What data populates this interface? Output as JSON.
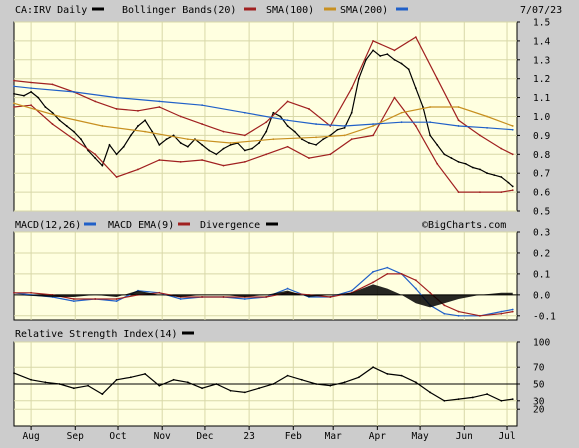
{
  "header": {
    "symbol_label": "CA:IRV Daily",
    "bollinger_label": "Bollinger Bands(20)",
    "sma100_label": "SMA(100)",
    "sma200_label": "SMA(200)",
    "date_label": "7/07/23"
  },
  "macd_header": {
    "macd_label": "MACD(12,26)",
    "ema_label": "MACD EMA(9)",
    "divergence_label": "Divergence",
    "watermark": "©BigCharts.com"
  },
  "rsi_header": {
    "rsi_label": "Relative Strength Index(14)"
  },
  "colors": {
    "background": "#cccccc",
    "panel": "#ffffe0",
    "grid": "#d8d8a8",
    "price": "#000000",
    "bollinger": "#a02020",
    "sma100": "#c89020",
    "sma200": "#2060c8",
    "macd": "#2060c8",
    "macd_ema": "#a02020",
    "divergence": "#000000",
    "rsi": "#000000"
  },
  "chart_data": [
    {
      "type": "line",
      "panel": "price",
      "y_ticks": [
        "0.5",
        "0.6",
        "0.7",
        "0.8",
        "0.9",
        "1.0",
        "1.1",
        "1.2",
        "1.3",
        "1.4",
        "1.5"
      ],
      "ylim": [
        0.5,
        1.5
      ],
      "x_ticks": [
        "Aug",
        "Sep",
        "Oct",
        "Nov",
        "Dec",
        "23",
        "Feb",
        "Mar",
        "Apr",
        "May",
        "Jun",
        "Jul"
      ],
      "x_tick_days": [
        0,
        31,
        61,
        92,
        122,
        153,
        184,
        212,
        243,
        273,
        304,
        334
      ],
      "x_range_days": [
        -12,
        341
      ],
      "series": [
        {
          "name": "Price",
          "x": [
            -12,
            -5,
            0,
            5,
            10,
            15,
            20,
            25,
            30,
            35,
            40,
            45,
            50,
            55,
            60,
            65,
            70,
            75,
            80,
            85,
            90,
            95,
            100,
            105,
            110,
            115,
            120,
            125,
            130,
            135,
            140,
            145,
            150,
            155,
            160,
            165,
            170,
            175,
            180,
            185,
            190,
            195,
            200,
            205,
            210,
            215,
            220,
            225,
            230,
            235,
            240,
            245,
            250,
            255,
            260,
            265,
            270,
            275,
            280,
            285,
            290,
            295,
            300,
            305,
            310,
            315,
            320,
            325,
            330,
            335,
            338
          ],
          "y": [
            1.12,
            1.11,
            1.13,
            1.1,
            1.05,
            1.02,
            0.98,
            0.95,
            0.92,
            0.88,
            0.82,
            0.78,
            0.74,
            0.85,
            0.8,
            0.84,
            0.9,
            0.95,
            0.98,
            0.92,
            0.85,
            0.88,
            0.9,
            0.86,
            0.84,
            0.88,
            0.85,
            0.82,
            0.8,
            0.83,
            0.85,
            0.86,
            0.82,
            0.83,
            0.86,
            0.92,
            1.02,
            1.0,
            0.95,
            0.92,
            0.88,
            0.86,
            0.85,
            0.88,
            0.9,
            0.93,
            0.94,
            1.02,
            1.2,
            1.3,
            1.35,
            1.32,
            1.33,
            1.3,
            1.28,
            1.25,
            1.15,
            1.05,
            0.9,
            0.85,
            0.8,
            0.78,
            0.76,
            0.75,
            0.73,
            0.72,
            0.7,
            0.69,
            0.68,
            0.65,
            0.63
          ]
        },
        {
          "name": "Bollinger Bands(20) Upper",
          "x": [
            -12,
            0,
            15,
            30,
            45,
            60,
            75,
            90,
            105,
            120,
            135,
            150,
            165,
            180,
            195,
            210,
            225,
            240,
            255,
            270,
            285,
            300,
            315,
            330,
            338
          ],
          "y": [
            1.19,
            1.18,
            1.17,
            1.13,
            1.08,
            1.04,
            1.03,
            1.05,
            1.0,
            0.96,
            0.92,
            0.9,
            0.97,
            1.08,
            1.04,
            0.95,
            1.15,
            1.4,
            1.35,
            1.42,
            1.2,
            0.98,
            0.9,
            0.83,
            0.8
          ]
        },
        {
          "name": "Bollinger Bands(20) Lower",
          "x": [
            -12,
            0,
            15,
            30,
            45,
            60,
            75,
            90,
            105,
            120,
            135,
            150,
            165,
            180,
            195,
            210,
            225,
            240,
            255,
            270,
            285,
            300,
            315,
            330,
            338
          ],
          "y": [
            1.05,
            1.06,
            0.96,
            0.88,
            0.8,
            0.68,
            0.72,
            0.77,
            0.76,
            0.77,
            0.74,
            0.76,
            0.8,
            0.84,
            0.78,
            0.8,
            0.88,
            0.9,
            1.1,
            0.95,
            0.75,
            0.6,
            0.6,
            0.6,
            0.61
          ]
        },
        {
          "name": "SMA(100)",
          "x": [
            -12,
            20,
            50,
            80,
            110,
            140,
            170,
            200,
            220,
            240,
            260,
            280,
            300,
            320,
            338
          ],
          "y": [
            1.07,
            1.0,
            0.95,
            0.92,
            0.88,
            0.86,
            0.88,
            0.89,
            0.9,
            0.95,
            1.02,
            1.05,
            1.05,
            1.0,
            0.95
          ]
        },
        {
          "name": "SMA(200)",
          "x": [
            -12,
            0,
            30,
            60,
            90,
            120,
            150,
            180,
            200,
            220,
            240,
            260,
            280,
            300,
            320,
            338
          ],
          "y": [
            1.16,
            1.15,
            1.13,
            1.1,
            1.08,
            1.06,
            1.02,
            0.98,
            0.96,
            0.95,
            0.96,
            0.97,
            0.97,
            0.95,
            0.94,
            0.93
          ]
        }
      ]
    },
    {
      "type": "line",
      "panel": "macd",
      "y_ticks": [
        "-0.1",
        "0.0",
        "0.1",
        "0.2",
        "0.3"
      ],
      "ylim": [
        -0.12,
        0.3
      ],
      "series": [
        {
          "name": "MACD(12,26)",
          "x": [
            -12,
            0,
            15,
            30,
            45,
            60,
            75,
            90,
            105,
            120,
            135,
            150,
            165,
            180,
            195,
            210,
            225,
            240,
            250,
            260,
            270,
            280,
            290,
            300,
            315,
            330,
            338
          ],
          "y": [
            0.01,
            0.0,
            -0.01,
            -0.03,
            -0.02,
            -0.03,
            0.02,
            0.01,
            -0.02,
            -0.01,
            -0.01,
            -0.02,
            -0.01,
            0.03,
            -0.01,
            -0.01,
            0.02,
            0.11,
            0.13,
            0.1,
            0.03,
            -0.05,
            -0.09,
            -0.1,
            -0.1,
            -0.08,
            -0.07
          ]
        },
        {
          "name": "MACD EMA(9)",
          "x": [
            -12,
            0,
            15,
            30,
            45,
            60,
            75,
            90,
            105,
            120,
            135,
            150,
            165,
            180,
            195,
            210,
            225,
            240,
            250,
            260,
            270,
            280,
            290,
            300,
            315,
            330,
            338
          ],
          "y": [
            0.01,
            0.01,
            0.0,
            -0.02,
            -0.02,
            -0.02,
            0.0,
            0.01,
            -0.01,
            -0.01,
            -0.01,
            -0.01,
            -0.01,
            0.01,
            0.0,
            -0.01,
            0.01,
            0.06,
            0.1,
            0.1,
            0.07,
            0.01,
            -0.05,
            -0.08,
            -0.1,
            -0.09,
            -0.08
          ]
        },
        {
          "name": "Divergence",
          "x": [
            -12,
            0,
            15,
            30,
            45,
            60,
            75,
            90,
            105,
            120,
            135,
            150,
            165,
            180,
            195,
            210,
            225,
            240,
            250,
            260,
            270,
            280,
            290,
            300,
            315,
            330,
            338
          ],
          "y": [
            0.0,
            -0.005,
            -0.01,
            -0.01,
            0.0,
            -0.01,
            0.02,
            0.0,
            -0.01,
            0.0,
            0.0,
            -0.01,
            0.0,
            0.02,
            -0.01,
            0.0,
            0.01,
            0.05,
            0.03,
            0.0,
            -0.04,
            -0.06,
            -0.04,
            -0.02,
            0.0,
            0.01,
            0.01
          ]
        }
      ]
    },
    {
      "type": "line",
      "panel": "rsi",
      "y_ticks": [
        "20",
        "30",
        "50",
        "70",
        "100"
      ],
      "ylim": [
        0,
        100
      ],
      "reference_line": 50,
      "series": [
        {
          "name": "Relative Strength Index(14)",
          "x": [
            -12,
            0,
            10,
            20,
            30,
            40,
            50,
            60,
            70,
            80,
            90,
            100,
            110,
            120,
            130,
            140,
            150,
            160,
            170,
            180,
            190,
            200,
            210,
            220,
            230,
            240,
            250,
            260,
            270,
            280,
            290,
            300,
            310,
            320,
            330,
            338
          ],
          "y": [
            63,
            55,
            52,
            50,
            45,
            48,
            38,
            55,
            58,
            62,
            48,
            55,
            52,
            45,
            50,
            42,
            40,
            45,
            50,
            60,
            55,
            50,
            48,
            52,
            58,
            70,
            62,
            60,
            52,
            40,
            30,
            32,
            34,
            38,
            30,
            32
          ]
        }
      ]
    }
  ]
}
